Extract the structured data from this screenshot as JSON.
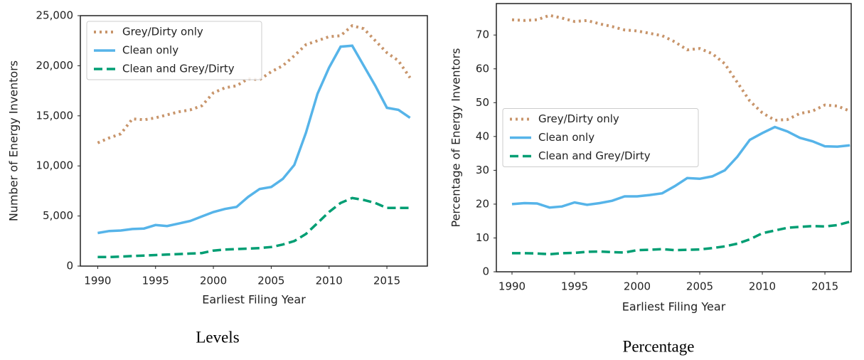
{
  "chart_data": [
    {
      "type": "line",
      "caption": "Levels",
      "xlabel": "Earliest Filing Year",
      "ylabel": "Number of Energy Inventors",
      "x": [
        1990,
        1991,
        1992,
        1993,
        1994,
        1995,
        1996,
        1997,
        1998,
        1999,
        2000,
        2001,
        2002,
        2003,
        2004,
        2005,
        2006,
        2007,
        2008,
        2009,
        2010,
        2011,
        2012,
        2013,
        2014,
        2015,
        2016,
        2017
      ],
      "xlim": [
        1988.5,
        2018.5
      ],
      "xticks": [
        1990,
        1995,
        2000,
        2005,
        2010,
        2015
      ],
      "ylim": [
        0,
        25000
      ],
      "yticks": [
        0,
        {
          "value": 5000,
          "label": "5,000"
        },
        {
          "value": 10000,
          "label": "10,000"
        },
        {
          "value": 15000,
          "label": "15,000"
        },
        {
          "value": 20000,
          "label": "20,000"
        },
        {
          "value": 25000,
          "label": "25,000"
        }
      ],
      "legend": "upper left",
      "series": [
        {
          "name": "Grey/Dirty only",
          "color": "#c8956b",
          "linestyle": "dotted",
          "values": [
            12300,
            12800,
            13200,
            14700,
            14600,
            14800,
            15100,
            15400,
            15600,
            16000,
            17300,
            17800,
            18000,
            18700,
            18600,
            19400,
            20000,
            21000,
            22100,
            22500,
            22900,
            23000,
            24000,
            23700,
            22500,
            21300,
            20500,
            18800
          ]
        },
        {
          "name": "Clean only",
          "color": "#56b4e9",
          "linestyle": "solid",
          "values": [
            3300,
            3500,
            3550,
            3700,
            3750,
            4100,
            4000,
            4250,
            4500,
            4950,
            5400,
            5700,
            5900,
            6900,
            7700,
            7900,
            8700,
            10100,
            13300,
            17200,
            19800,
            21900,
            22000,
            20000,
            18000,
            15800,
            15600,
            14800
          ]
        },
        {
          "name": "Clean and Grey/Dirty",
          "color": "#009e73",
          "linestyle": "dashed",
          "values": [
            900,
            900,
            950,
            1000,
            1050,
            1100,
            1150,
            1200,
            1250,
            1300,
            1550,
            1650,
            1700,
            1750,
            1800,
            1900,
            2150,
            2500,
            3200,
            4300,
            5400,
            6300,
            6800,
            6600,
            6300,
            5800,
            5800,
            5800
          ]
        }
      ]
    },
    {
      "type": "line",
      "caption": "Percentage",
      "xlabel": "Earliest Filing Year",
      "ylabel": "Percentage of Energy Inventors",
      "x": [
        1990,
        1991,
        1992,
        1993,
        1994,
        1995,
        1996,
        1997,
        1998,
        1999,
        2000,
        2001,
        2002,
        2003,
        2004,
        2005,
        2006,
        2007,
        2008,
        2009,
        2010,
        2011,
        2012,
        2013,
        2014,
        2015,
        2016,
        2017
      ],
      "xlim": [
        1988.75,
        2017.1
      ],
      "xticks": [
        1990,
        1995,
        2000,
        2005,
        2010,
        2015
      ],
      "ylim": [
        0,
        79.3
      ],
      "yticks": [
        0,
        10,
        20,
        30,
        40,
        50,
        60,
        70
      ],
      "legend": "center left",
      "series": [
        {
          "name": "Grey/Dirty only",
          "color": "#c8956b",
          "linestyle": "dotted",
          "values": [
            74.5,
            74.3,
            74.5,
            75.8,
            75,
            74,
            74.3,
            73.3,
            72.5,
            71.5,
            71.2,
            70.5,
            69.8,
            68,
            65.6,
            66,
            64.5,
            61.5,
            56,
            50.5,
            47,
            44.8,
            45,
            46.8,
            47.5,
            49.3,
            49,
            47.5
          ]
        },
        {
          "name": "Clean only",
          "color": "#56b4e9",
          "linestyle": "solid",
          "values": [
            20,
            20.3,
            20.2,
            19,
            19.3,
            20.5,
            19.8,
            20.3,
            21,
            22.3,
            22.3,
            22.7,
            23.2,
            25.3,
            27.7,
            27.5,
            28.2,
            30,
            34,
            39,
            41,
            42.8,
            41.5,
            39.6,
            38.6,
            37.1,
            37,
            37.4
          ]
        },
        {
          "name": "Clean and Grey/Dirty",
          "color": "#009e73",
          "linestyle": "dashed",
          "values": [
            5.5,
            5.5,
            5.4,
            5.2,
            5.5,
            5.6,
            5.9,
            6,
            5.8,
            5.7,
            6.4,
            6.5,
            6.7,
            6.4,
            6.5,
            6.6,
            7,
            7.5,
            8.3,
            9.6,
            11.4,
            12.2,
            13,
            13.3,
            13.5,
            13.4,
            13.8,
            14.8
          ]
        }
      ]
    }
  ]
}
